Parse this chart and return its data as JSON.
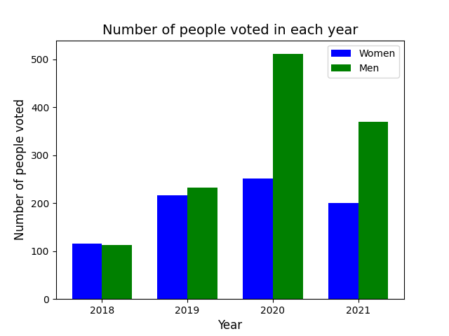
{
  "title": "Number of people voted in each year",
  "xlabel": "Year",
  "ylabel": "Number of people voted",
  "years": [
    2018,
    2019,
    2020,
    2021
  ],
  "women": [
    115,
    217,
    251,
    201
  ],
  "men": [
    113,
    232,
    511,
    370
  ],
  "women_color": "#0000ff",
  "men_color": "#008000",
  "legend_labels": [
    "Women",
    "Men"
  ],
  "ylim": [
    0,
    540
  ],
  "bar_width": 0.35,
  "title_fontsize": 14,
  "axis_label_fontsize": 12,
  "figsize": [
    6.4,
    4.8
  ],
  "dpi": 100
}
